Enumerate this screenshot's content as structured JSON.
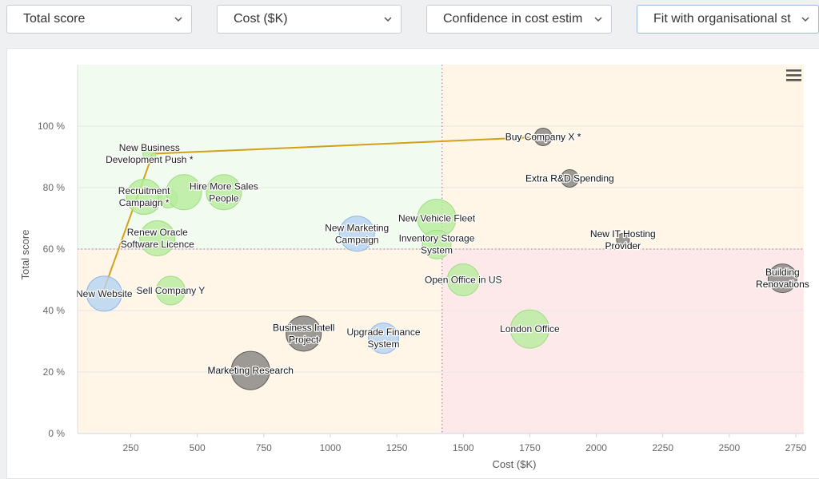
{
  "controls": {
    "size_select": "Total score",
    "x_select": "Cost ($K)",
    "y_select": "Confidence in cost estim",
    "color_select": "Fit with organisational st"
  },
  "colors": {
    "green": "#b6ec9c",
    "blue": "#b5d3f3",
    "gray": "#8c8986",
    "zone_green": "#f2fbef",
    "zone_orange": "#fff6e8",
    "zone_red": "#fde9ea",
    "frontier": "#d4a017"
  },
  "icons": {
    "menu": "hamburger-menu-icon",
    "dropdown": "chevron-down-icon"
  },
  "chart_data": {
    "type": "bubble",
    "xlabel": "Cost ($K)",
    "ylabel": "Total score",
    "xlim": [
      50,
      2780
    ],
    "ylim": [
      0,
      1.2
    ],
    "x_ticks": [
      250,
      500,
      750,
      1000,
      1250,
      1500,
      1750,
      2000,
      2250,
      2500,
      2750
    ],
    "y_ticks": [
      "0 %",
      "20 %",
      "40 %",
      "60 %",
      "80 %",
      "100 %"
    ],
    "thresholds": {
      "x": 1420,
      "y": 0.6
    },
    "zones": [
      {
        "region": "low-cost-high-score",
        "color": "green"
      },
      {
        "region": "low-cost-low-score",
        "color": "orange"
      },
      {
        "region": "high-cost-high-score",
        "color": "orange"
      },
      {
        "region": "high-cost-low-score",
        "color": "red"
      }
    ],
    "frontier": [
      {
        "x": 150,
        "y": 0.47
      },
      {
        "x": 320,
        "y": 0.88
      },
      {
        "x": 330,
        "y": 0.91
      },
      {
        "x": 1800,
        "y": 0.965
      }
    ],
    "points": [
      {
        "name": "New Website",
        "x": 150,
        "y": 0.455,
        "r": 22,
        "color": "blue"
      },
      {
        "name": "Sell Company Y",
        "x": 400,
        "y": 0.465,
        "r": 18,
        "color": "green"
      },
      {
        "name": "Renew Oracle\nSoftware Licence",
        "x": 350,
        "y": 0.635,
        "r": 22,
        "color": "green"
      },
      {
        "name": "Recruitment\nCampaign *",
        "x": 300,
        "y": 0.77,
        "r": 22,
        "color": "green"
      },
      {
        "name": "",
        "x": 390,
        "y": 0.765,
        "r": 12,
        "color": "green"
      },
      {
        "name": "Hire More Sales\nPeople",
        "x": 600,
        "y": 0.785,
        "r": 22,
        "color": "green"
      },
      {
        "name": "",
        "x": 450,
        "y": 0.785,
        "r": 22,
        "color": "green"
      },
      {
        "name": "New Business\nDevelopment Push *",
        "x": 320,
        "y": 0.91,
        "r": 8,
        "color": "green"
      },
      {
        "name": "New Marketing\nCampaign",
        "x": 1100,
        "y": 0.65,
        "r": 22,
        "color": "blue"
      },
      {
        "name": "New Vehicle Fleet",
        "x": 1400,
        "y": 0.7,
        "r": 24,
        "color": "green"
      },
      {
        "name": "Inventory Storage\nSystem",
        "x": 1400,
        "y": 0.615,
        "r": 18,
        "color": "green"
      },
      {
        "name": "Open Office in US",
        "x": 1500,
        "y": 0.5,
        "r": 20,
        "color": "green"
      },
      {
        "name": "London Office",
        "x": 1750,
        "y": 0.34,
        "r": 24,
        "color": "green"
      },
      {
        "name": "Upgrade Finance\nSystem",
        "x": 1200,
        "y": 0.31,
        "r": 19,
        "color": "blue"
      },
      {
        "name": "Business Intell\nProject",
        "x": 900,
        "y": 0.325,
        "r": 22,
        "color": "gray"
      },
      {
        "name": "Marketing Research",
        "x": 700,
        "y": 0.205,
        "r": 24,
        "color": "gray"
      },
      {
        "name": "Buy Company X *",
        "x": 1800,
        "y": 0.965,
        "r": 11,
        "color": "gray"
      },
      {
        "name": "Extra R&D Spending",
        "x": 1900,
        "y": 0.83,
        "r": 11,
        "color": "gray"
      },
      {
        "name": "New IT Hosting\nProvider",
        "x": 2100,
        "y": 0.63,
        "r": 8,
        "color": "gray"
      },
      {
        "name": "Building\nRenovations",
        "x": 2700,
        "y": 0.505,
        "r": 18,
        "color": "gray"
      }
    ]
  }
}
